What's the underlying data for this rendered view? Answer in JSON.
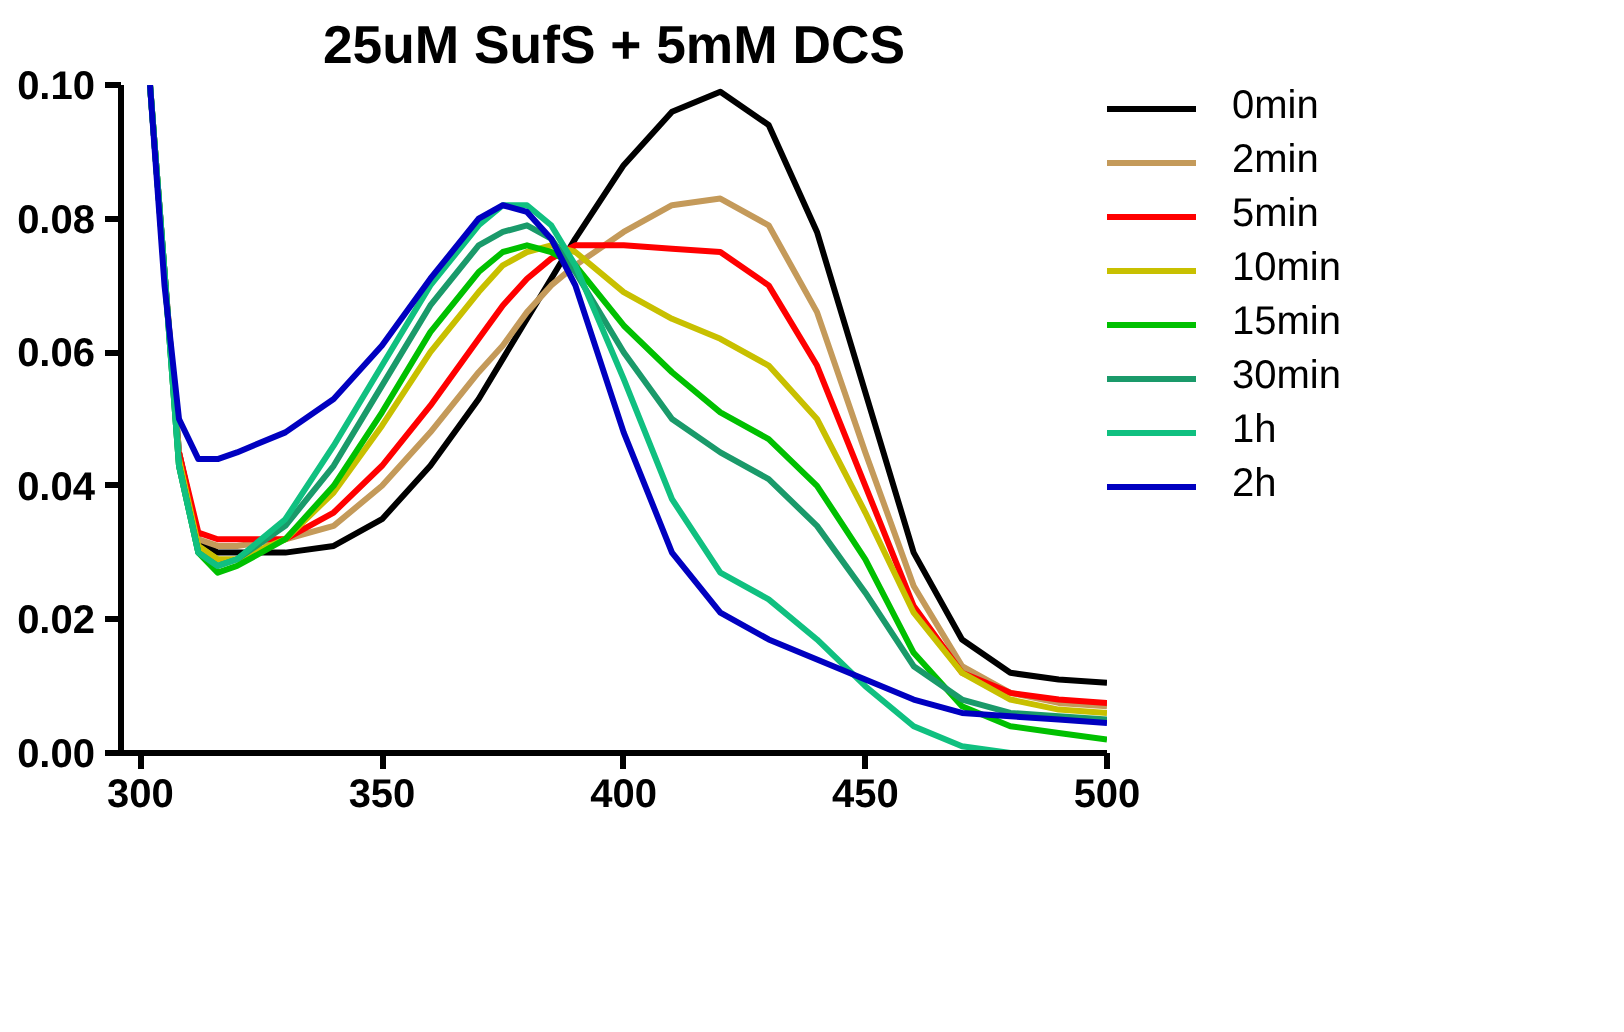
{
  "chart_data": {
    "type": "line",
    "title": "25uM SufS + 5mM DCS",
    "x": [
      302,
      305,
      308,
      312,
      316,
      320,
      330,
      340,
      350,
      360,
      370,
      375,
      380,
      385,
      390,
      400,
      410,
      420,
      430,
      440,
      450,
      460,
      470,
      480,
      490,
      500
    ],
    "series": [
      {
        "name": "0min",
        "color": "#000000",
        "values": [
          0.1,
          0.072,
          0.045,
          0.032,
          0.03,
          0.03,
          0.03,
          0.031,
          0.035,
          0.043,
          0.053,
          0.059,
          0.065,
          0.071,
          0.077,
          0.088,
          0.096,
          0.099,
          0.094,
          0.078,
          0.054,
          0.03,
          0.017,
          0.012,
          0.011,
          0.0105
        ]
      },
      {
        "name": "2min",
        "color": "#c49a5a",
        "values": [
          0.1,
          0.072,
          0.045,
          0.032,
          0.031,
          0.031,
          0.032,
          0.034,
          0.04,
          0.048,
          0.057,
          0.061,
          0.066,
          0.07,
          0.073,
          0.078,
          0.082,
          0.083,
          0.079,
          0.066,
          0.045,
          0.025,
          0.013,
          0.009,
          0.0075,
          0.007
        ]
      },
      {
        "name": "5min",
        "color": "#ff0000",
        "values": [
          null,
          null,
          0.045,
          0.033,
          0.032,
          0.032,
          0.032,
          0.036,
          0.043,
          0.052,
          0.062,
          0.067,
          0.071,
          0.074,
          0.076,
          0.076,
          0.0755,
          0.075,
          0.07,
          0.058,
          0.04,
          0.022,
          0.012,
          0.009,
          0.008,
          0.0075
        ]
      },
      {
        "name": "10min",
        "color": "#c8c000",
        "values": [
          null,
          null,
          0.044,
          0.031,
          0.029,
          0.029,
          0.032,
          0.039,
          0.049,
          0.06,
          0.069,
          0.073,
          0.075,
          0.076,
          0.075,
          0.069,
          0.065,
          0.062,
          0.058,
          0.05,
          0.036,
          0.021,
          0.012,
          0.008,
          0.0065,
          0.006
        ]
      },
      {
        "name": "15min",
        "color": "#00c000",
        "values": [
          0.1,
          0.072,
          0.043,
          0.03,
          0.027,
          0.028,
          0.032,
          0.04,
          0.051,
          0.063,
          0.072,
          0.075,
          0.076,
          0.075,
          0.073,
          0.064,
          0.057,
          0.051,
          0.047,
          0.04,
          0.029,
          0.015,
          0.007,
          0.004,
          0.003,
          0.002
        ]
      },
      {
        "name": "30min",
        "color": "#1a9a6a",
        "values": [
          0.1,
          0.072,
          0.043,
          0.03,
          0.028,
          0.029,
          0.034,
          0.043,
          0.055,
          0.067,
          0.076,
          0.078,
          0.079,
          0.077,
          0.072,
          0.06,
          0.05,
          0.045,
          0.041,
          0.034,
          0.024,
          0.013,
          0.008,
          0.006,
          0.0055,
          0.005
        ]
      },
      {
        "name": "1h",
        "color": "#10c080",
        "values": [
          0.1,
          0.072,
          0.043,
          0.03,
          0.028,
          0.029,
          0.035,
          0.046,
          0.058,
          0.07,
          0.079,
          0.082,
          0.082,
          0.079,
          0.073,
          0.056,
          0.038,
          0.027,
          0.023,
          0.017,
          0.01,
          0.004,
          0.001,
          0.0,
          null,
          null
        ]
      },
      {
        "name": "2h",
        "color": "#0000c0",
        "values": [
          0.1,
          0.07,
          0.05,
          0.044,
          0.044,
          0.045,
          0.048,
          0.053,
          0.061,
          0.071,
          0.08,
          0.082,
          0.081,
          0.077,
          0.07,
          0.048,
          0.03,
          0.021,
          0.017,
          0.014,
          0.011,
          0.008,
          0.006,
          0.0055,
          0.005,
          0.0045
        ]
      }
    ],
    "xlim": [
      296,
      500
    ],
    "ylim": [
      0,
      0.1
    ],
    "xticks": [
      300,
      350,
      400,
      450,
      500
    ],
    "yticks": [
      {
        "value": 0,
        "label": "0.00"
      },
      {
        "value": 0.02,
        "label": "0.02"
      },
      {
        "value": 0.04,
        "label": "0.04"
      },
      {
        "value": 0.06,
        "label": "0.06"
      },
      {
        "value": 0.08,
        "label": "0.08"
      },
      {
        "value": 0.1,
        "label": "0.10"
      }
    ],
    "legend": "right",
    "grid": false
  }
}
